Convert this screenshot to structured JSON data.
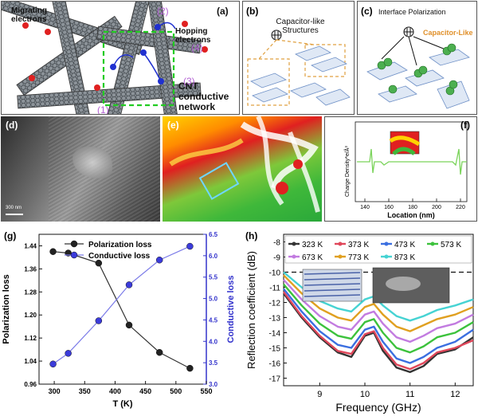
{
  "panel_a": {
    "tag": "(a)",
    "migrating": "Migrating\nelectrons",
    "hopping": "Hopping\nelectrons",
    "cnt": "CNT\nconductive\nnetwork",
    "n1": "(1)",
    "n2": "(2)",
    "n3": "(3)",
    "n4": "(4)"
  },
  "panel_b": {
    "tag": "(b)",
    "title": "Capacitor-like\nStructures"
  },
  "panel_c": {
    "tag": "(c)",
    "title": "Interface Polarization",
    "label": "Capacitor-Like"
  },
  "panel_d": {
    "tag": "(d)",
    "scale": "300 nm"
  },
  "panel_e": {
    "tag": "(e)"
  },
  "panel_f": {
    "tag": "(f)",
    "ylabel": "Charge Density*e/Å³",
    "xlabel": "Location (nm)",
    "xticks": [
      "140",
      "160",
      "180",
      "200",
      "220"
    ]
  },
  "colors": {
    "polarization": "#222222",
    "conductive": "#3b3bdb",
    "axis": "#3333cc",
    "fline": "#7ad35a"
  },
  "chart_data": [
    {
      "type": "line",
      "tag": "(g)",
      "xlabel": "T (K)",
      "ylabel": "Polarization loss",
      "y2label": "Conductive loss",
      "xlim": [
        275,
        550
      ],
      "ylim": [
        0.96,
        1.48
      ],
      "y2lim": [
        3.0,
        6.5
      ],
      "xticks": [
        300,
        350,
        400,
        450,
        500,
        550
      ],
      "yticks": [
        0.96,
        1.04,
        1.12,
        1.2,
        1.28,
        1.36,
        1.44
      ],
      "y2ticks": [
        3.0,
        3.5,
        4.0,
        4.5,
        5.0,
        5.5,
        6.0,
        6.5
      ],
      "x": [
        298,
        323,
        373,
        423,
        473,
        523
      ],
      "legend_position": "top-center",
      "series": [
        {
          "name": "Polarization loss",
          "axis": "left",
          "values": [
            1.42,
            1.415,
            1.38,
            1.165,
            1.07,
            1.015
          ]
        },
        {
          "name": "Conductive loss",
          "axis": "right",
          "values": [
            3.47,
            3.72,
            4.48,
            5.32,
            5.9,
            6.22
          ]
        }
      ]
    },
    {
      "type": "line",
      "tag": "(h)",
      "xlabel": "Frequency (GHz)",
      "ylabel": "Reflection coefficient (dB)",
      "xlim": [
        8.2,
        12.4
      ],
      "ylim": [
        -17.5,
        -7.5
      ],
      "xticks": [
        9,
        10,
        11,
        12
      ],
      "yticks": [
        -8,
        -9,
        -10,
        -11,
        -12,
        -13,
        -14,
        -15,
        -16,
        -17
      ],
      "reference_line": -10,
      "legend_position": "top",
      "x": [
        8.2,
        8.6,
        9.0,
        9.4,
        9.7,
        10.0,
        10.2,
        10.4,
        10.7,
        11.0,
        11.3,
        11.6,
        12.0,
        12.4
      ],
      "series": [
        {
          "name": "323 K",
          "color": "#333333",
          "values": [
            -11.4,
            -13.0,
            -14.3,
            -15.3,
            -15.6,
            -14.2,
            -14.0,
            -15.2,
            -16.3,
            -16.6,
            -16.2,
            -15.4,
            -15.1,
            -14.3
          ]
        },
        {
          "name": "373 K",
          "color": "#e0475a",
          "values": [
            -11.3,
            -12.9,
            -14.2,
            -15.2,
            -15.4,
            -14.1,
            -13.9,
            -15.0,
            -16.1,
            -16.4,
            -16.0,
            -15.3,
            -15.0,
            -14.5
          ]
        },
        {
          "name": "473 K",
          "color": "#3b6fe0",
          "values": [
            -11.1,
            -12.6,
            -13.9,
            -14.8,
            -15.0,
            -13.8,
            -13.6,
            -14.6,
            -15.7,
            -16.0,
            -15.6,
            -15.0,
            -14.6,
            -13.8
          ]
        },
        {
          "name": "573 K",
          "color": "#3cc23c",
          "values": [
            -10.8,
            -12.2,
            -13.4,
            -14.2,
            -14.4,
            -13.3,
            -13.1,
            -14.0,
            -15.0,
            -15.3,
            -14.9,
            -14.3,
            -14.0,
            -13.3
          ]
        },
        {
          "name": "673 K",
          "color": "#c27be0",
          "values": [
            -10.5,
            -11.8,
            -12.9,
            -13.6,
            -13.8,
            -12.8,
            -12.6,
            -13.4,
            -14.3,
            -14.6,
            -14.2,
            -13.7,
            -13.4,
            -12.8
          ]
        },
        {
          "name": "773 K",
          "color": "#e0a020",
          "values": [
            -10.2,
            -11.4,
            -12.4,
            -13.0,
            -13.2,
            -12.3,
            -12.1,
            -12.8,
            -13.6,
            -13.9,
            -13.5,
            -13.1,
            -12.8,
            -12.3
          ]
        },
        {
          "name": "873 K",
          "color": "#46d3d3",
          "values": [
            -10.0,
            -11.0,
            -11.9,
            -12.4,
            -12.6,
            -11.8,
            -11.6,
            -12.2,
            -12.9,
            -13.2,
            -12.9,
            -12.5,
            -12.2,
            -11.8
          ]
        }
      ]
    }
  ]
}
